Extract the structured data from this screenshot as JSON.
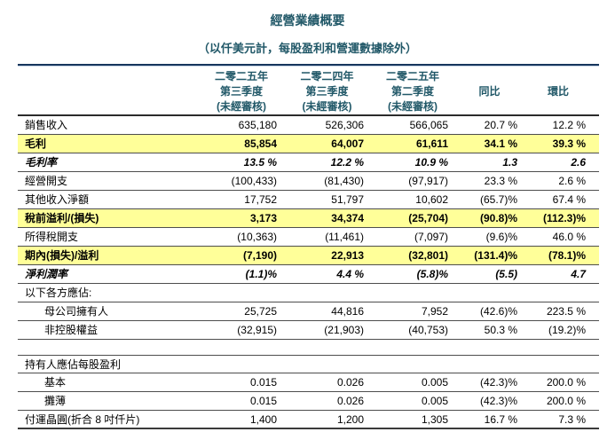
{
  "title": "經營業績概要",
  "subtitle": "（以仟美元計，每股盈利和營運數據除外）",
  "colors": {
    "heading_teal": "#215868",
    "rule_navy": "#17365d",
    "row_highlight": "#ffff99",
    "grid_line": "#4d4d4d"
  },
  "columns": [
    {
      "lines": [
        "二零二五年",
        "第三季度",
        "(未經審核)"
      ]
    },
    {
      "lines": [
        "二零二四年",
        "第三季度",
        "(未經審核)"
      ]
    },
    {
      "lines": [
        "二零二五年",
        "第二季度",
        "(未經審核)"
      ]
    },
    {
      "lines": [
        "同比"
      ]
    },
    {
      "lines": [
        "環比"
      ]
    }
  ],
  "rows": [
    {
      "label": "銷售收入",
      "values": [
        "635,180",
        "526,306",
        "566,065",
        "20.7 %",
        "12.2 %"
      ],
      "style": "normal"
    },
    {
      "label": "毛利",
      "values": [
        "85,854",
        "64,007",
        "61,611",
        "34.1 %",
        "39.3 %"
      ],
      "style": "highlight"
    },
    {
      "label": "毛利率",
      "values": [
        "13.5 %",
        "12.2 %",
        "10.9 %",
        "1.3",
        "2.6"
      ],
      "style": "rate"
    },
    {
      "label": "經營開支",
      "values": [
        "(100,433)",
        "(81,430)",
        "(97,917)",
        "23.3 %",
        "2.6 %"
      ],
      "style": "normal"
    },
    {
      "label": "其他收入淨額",
      "values": [
        "17,752",
        "51,797",
        "10,602",
        "(65.7)%",
        "67.4 %"
      ],
      "style": "normal"
    },
    {
      "label": "稅前溢利/(損失)",
      "values": [
        "3,173",
        "34,374",
        "(25,704)",
        "(90.8)%",
        "(112.3)%"
      ],
      "style": "highlight"
    },
    {
      "label": "所得稅開支",
      "values": [
        "(10,363)",
        "(11,461)",
        "(7,097)",
        "(9.6)%",
        "46.0 %"
      ],
      "style": "normal"
    },
    {
      "label": "期內(損失)/溢利",
      "values": [
        "(7,190)",
        "22,913",
        "(32,801)",
        "(131.4)%",
        "(78.1)%"
      ],
      "style": "highlight"
    },
    {
      "label": "淨利潤率",
      "values": [
        "(1.1)%",
        "4.4 %",
        "(5.8)%",
        "(5.5)",
        "4.7"
      ],
      "style": "rate"
    },
    {
      "label": "以下各方應佔:",
      "values": [
        "",
        "",
        "",
        "",
        ""
      ],
      "style": "section"
    },
    {
      "label": "母公司擁有人",
      "values": [
        "25,725",
        "44,816",
        "7,952",
        "(42.6)%",
        "223.5 %"
      ],
      "style": "indent"
    },
    {
      "label": "非控股權益",
      "values": [
        "(32,915)",
        "(21,903)",
        "(40,753)",
        "50.3 %",
        "(19.2)%"
      ],
      "style": "indent"
    },
    {
      "label": "",
      "values": [],
      "style": "spacer"
    },
    {
      "label": "持有人應佔每股盈利",
      "values": [
        "",
        "",
        "",
        "",
        ""
      ],
      "style": "section top"
    },
    {
      "label": "基本",
      "values": [
        "0.015",
        "0.026",
        "0.005",
        "(42.3)%",
        "200.0 %"
      ],
      "style": "indent"
    },
    {
      "label": "攤薄",
      "values": [
        "0.015",
        "0.026",
        "0.005",
        "(42.3)%",
        "200.0 %"
      ],
      "style": "indent"
    },
    {
      "label": "付運晶圓(折合 8 吋仟片)",
      "values": [
        "1,400",
        "1,200",
        "1,305",
        "16.7 %",
        "7.3 %"
      ],
      "style": "normal last"
    }
  ]
}
